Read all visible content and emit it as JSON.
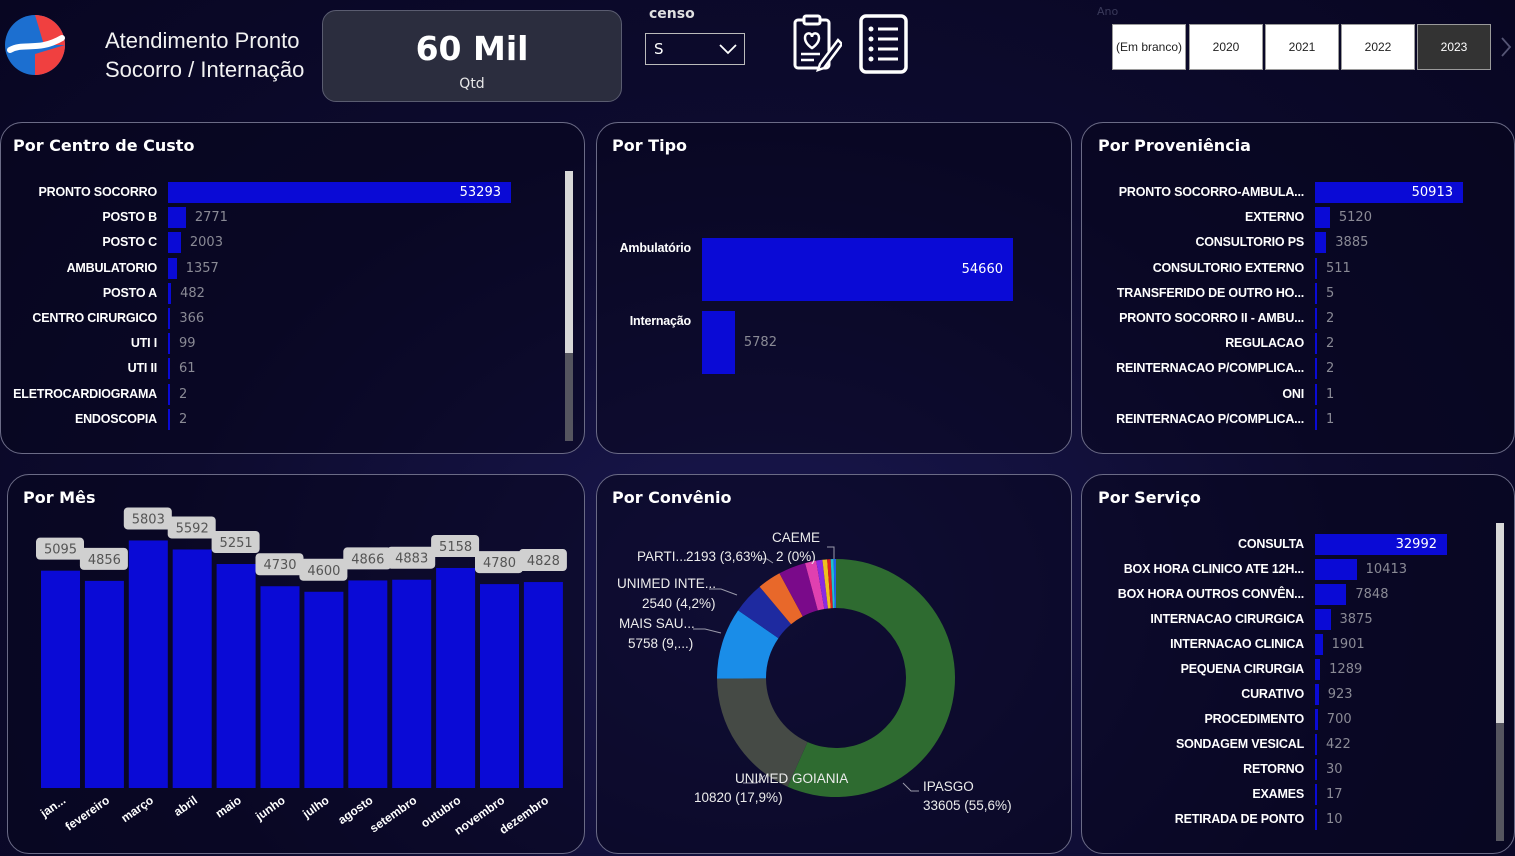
{
  "header": {
    "title_line1": "Atendimento Pronto",
    "title_line2": "Socorro / Internação",
    "kpi_value": "60 Mil",
    "kpi_label": "Qtd",
    "censo_label": "censo",
    "censo_value": "S",
    "ano_label": "Ano",
    "years": [
      "(Em branco)",
      "2020",
      "2021",
      "2022",
      "2023"
    ],
    "selected_year": "2023",
    "icons": [
      "medical-report-icon",
      "list-icon"
    ]
  },
  "colors": {
    "bar": "#0a0ad6",
    "background": "#0d0b2e",
    "panel_border": "#6b6b86"
  },
  "panels": {
    "centro_custo": "Por Centro de Custo",
    "tipo": "Por Tipo",
    "proveniencia": "Por Proveniência",
    "mes": "Por Mês",
    "convenio": "Por Convênio",
    "servico": "Por Serviço"
  },
  "chart_data": [
    {
      "type": "bar",
      "orientation": "horizontal",
      "title": "Por Centro de Custo",
      "categories": [
        "PRONTO SOCORRO",
        "POSTO B",
        "POSTO C",
        "AMBULATORIO",
        "POSTO A",
        "CENTRO CIRURGICO",
        "UTI I",
        "UTI II",
        "ELETROCARDIOGRAMA",
        "ENDOSCOPIA"
      ],
      "values": [
        53293,
        2771,
        2003,
        1357,
        482,
        366,
        99,
        61,
        2,
        2
      ]
    },
    {
      "type": "bar",
      "orientation": "horizontal",
      "title": "Por Tipo",
      "categories": [
        "Ambulatório",
        "Internação"
      ],
      "values": [
        54660,
        5782
      ]
    },
    {
      "type": "bar",
      "orientation": "horizontal",
      "title": "Por Proveniência",
      "categories": [
        "PRONTO SOCORRO-AMBULA...",
        "EXTERNO",
        "CONSULTORIO PS",
        "CONSULTORIO EXTERNO",
        "TRANSFERIDO DE OUTRO HO...",
        "PRONTO SOCORRO II - AMBU...",
        "REGULACAO",
        "REINTERNACAO P/COMPLICA...",
        "ONI",
        "REINTERNACAO P/COMPLICA..."
      ],
      "values": [
        50913,
        5120,
        3885,
        511,
        5,
        2,
        2,
        2,
        1,
        1
      ]
    },
    {
      "type": "bar",
      "title": "Por Mês",
      "categories": [
        "jan...",
        "fevereiro",
        "março",
        "abril",
        "maio",
        "junho",
        "julho",
        "agosto",
        "setembro",
        "outubro",
        "novembro",
        "dezembro"
      ],
      "values": [
        5095,
        4856,
        5803,
        5592,
        5251,
        4730,
        4600,
        4866,
        4883,
        5158,
        4780,
        4828
      ],
      "ylim": [
        0,
        6400
      ]
    },
    {
      "type": "pie",
      "variant": "donut",
      "title": "Por Convênio",
      "slices": [
        {
          "label": "IPASGO",
          "value": 33605,
          "text": "33605 (55,6%)",
          "color": "#2e6b30"
        },
        {
          "label": "UNIMED GOIANIA",
          "value": 10820,
          "text": "10820 (17,9%)",
          "color": "#454a45"
        },
        {
          "label": "MAIS SAU...",
          "value": 5758,
          "text": "5758 (9,...)",
          "color": "#1a8de8"
        },
        {
          "label": "UNIMED INTE...",
          "value": 2540,
          "text": "2540 (4,2%)",
          "color": "#1e2aa0"
        },
        {
          "label": "",
          "value": 1900,
          "text": "",
          "color": "#e8682a"
        },
        {
          "label": "PARTI...",
          "value": 2193,
          "text": "2193 (3,63%)",
          "color": "#7a0a8a"
        },
        {
          "label": "",
          "value": 900,
          "text": "",
          "color": "#e040b0"
        },
        {
          "label": "",
          "value": 500,
          "text": "",
          "color": "#8a2be2"
        },
        {
          "label": "",
          "value": 380,
          "text": "",
          "color": "#f0c020"
        },
        {
          "label": "",
          "value": 280,
          "text": "",
          "color": "#e02020"
        },
        {
          "label": "",
          "value": 240,
          "text": "",
          "color": "#20c0d0"
        },
        {
          "label": "",
          "value": 180,
          "text": "",
          "color": "#2060f0"
        },
        {
          "label": "CAEME",
          "value": 2,
          "text": "2 (0%)",
          "color": "#a0a0a0"
        }
      ]
    },
    {
      "type": "bar",
      "orientation": "horizontal",
      "title": "Por Serviço",
      "categories": [
        "CONSULTA",
        "BOX HORA CLINICO ATE 12H...",
        "BOX HORA OUTROS CONVÊN...",
        "INTERNACAO CIRURGICA",
        "INTERNACAO CLINICA",
        "PEQUENA CIRURGIA",
        "CURATIVO",
        "PROCEDIMENTO",
        "SONDAGEM VESICAL",
        "RETORNO",
        "EXAMES",
        "RETIRADA DE PONTO"
      ],
      "values": [
        32992,
        10413,
        7848,
        3875,
        1901,
        1289,
        923,
        700,
        422,
        30,
        17,
        10
      ]
    }
  ]
}
